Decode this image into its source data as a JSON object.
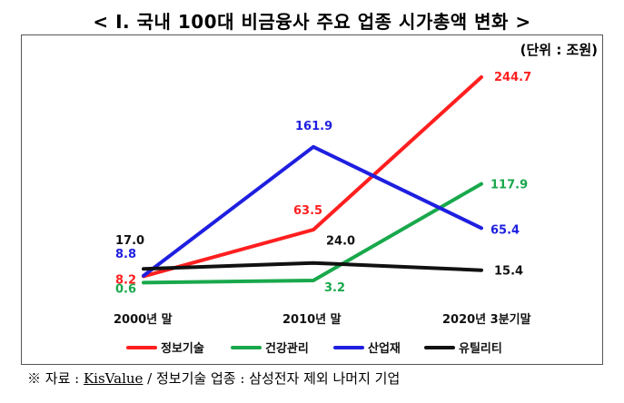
{
  "title": "< Ⅰ. 국내 100대 비금융사 주요 업종 시가총액 변화 >",
  "unit": "(단위 : 조원)",
  "source": {
    "prefix": "※ 자료 : ",
    "underlined": "KisValue",
    "suffix": " / 정보기술 업종 : 삼성전자 제외 나머지 기업"
  },
  "chart_data": {
    "type": "line",
    "categories": [
      "2000년 말",
      "2010년 말",
      "2020년 3분기말"
    ],
    "ylim": [
      0,
      260
    ],
    "series": [
      {
        "name": "정보기술",
        "color": "#ff1f1f",
        "values": [
          8.2,
          63.5,
          244.7
        ],
        "labels": [
          "8.2",
          "63.5",
          "244.7"
        ]
      },
      {
        "name": "건강관리",
        "color": "#19a84c",
        "values": [
          0.6,
          3.2,
          117.9
        ],
        "labels": [
          "0.6",
          "3.2",
          "117.9"
        ]
      },
      {
        "name": "산업재",
        "color": "#1f1fe0",
        "values": [
          8.8,
          161.9,
          65.4
        ],
        "labels": [
          "8.8",
          "161.9",
          "65.4"
        ]
      },
      {
        "name": "유틸리티",
        "color": "#111111",
        "values": [
          17.0,
          24.0,
          15.4
        ],
        "labels": [
          "17.0",
          "24.0",
          "15.4"
        ]
      }
    ]
  }
}
